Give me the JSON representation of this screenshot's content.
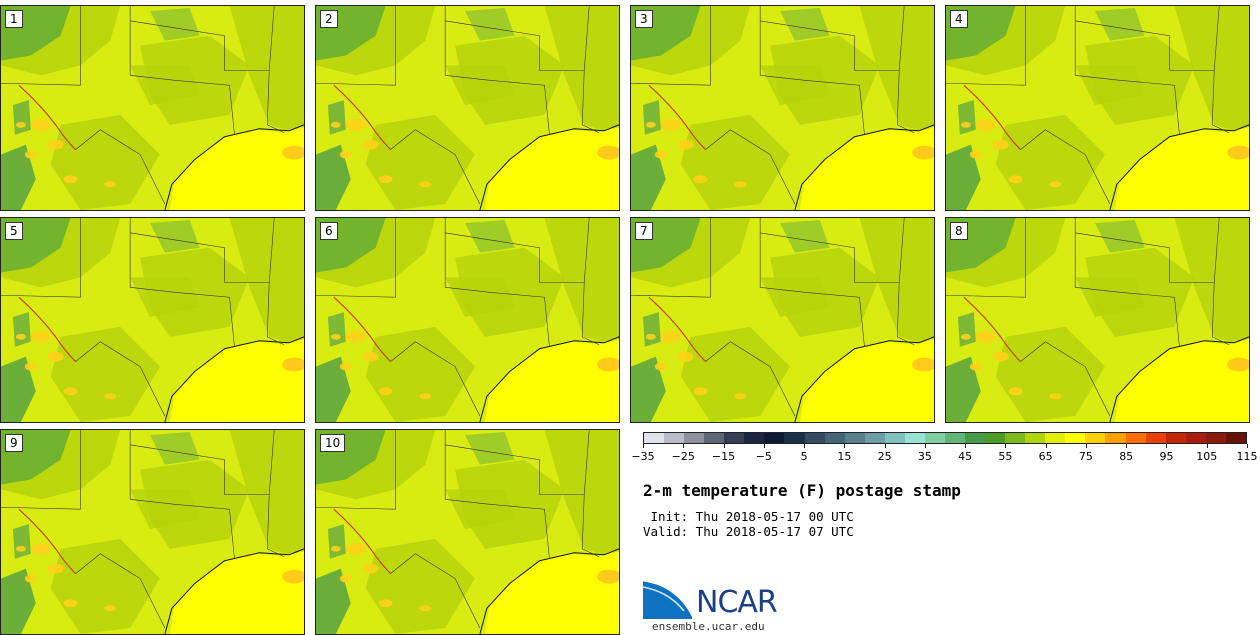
{
  "members": [
    "1",
    "2",
    "3",
    "4",
    "5",
    "6",
    "7",
    "8",
    "9",
    "10"
  ],
  "colorbar": {
    "colors": [
      "#e1e3ec",
      "#b9bcc8",
      "#8c909f",
      "#5e6577",
      "#343d52",
      "#1a2540",
      "#0d1a33",
      "#1c2f48",
      "#334a60",
      "#466477",
      "#57808b",
      "#6d9ea4",
      "#80c0bd",
      "#98e2d4",
      "#7fcfa0",
      "#62b576",
      "#4a9a4c",
      "#4e9b28",
      "#7cb91a",
      "#b3d30c",
      "#e2ef05",
      "#ffff00",
      "#ffcf00",
      "#ffa000",
      "#ff6d00",
      "#e84000",
      "#c42600",
      "#a81b0d",
      "#8a1a0e",
      "#661408"
    ],
    "ticks": [
      "−35",
      "−25",
      "−15",
      "−5",
      "5",
      "15",
      "25",
      "35",
      "45",
      "55",
      "65",
      "75",
      "85",
      "95",
      "105",
      "115"
    ]
  },
  "title": "2-m temperature (F) postage stamp",
  "init": " Init: Thu 2018-05-17 00 UTC",
  "valid": "Valid: Thu 2018-05-17 07 UTC",
  "logo": {
    "text": "NCAR",
    "url": "ensemble.ucar.edu",
    "color": "#1b3f8b"
  }
}
